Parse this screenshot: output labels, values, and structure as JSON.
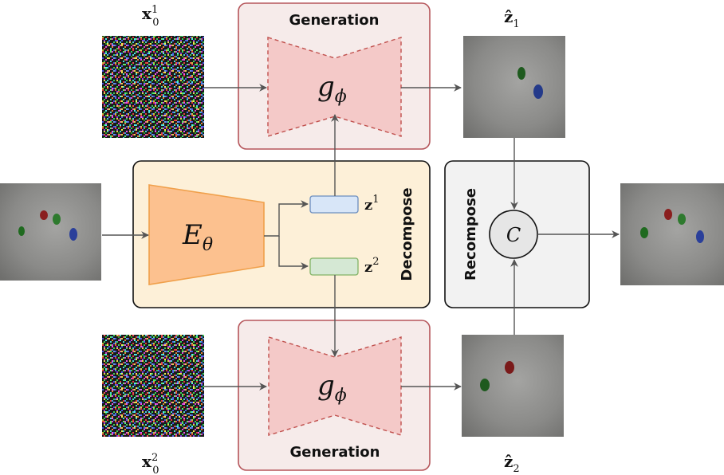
{
  "labels": {
    "x0_1": {
      "base": "x",
      "sup": "1",
      "sub": "0"
    },
    "x0_2": {
      "base": "x",
      "sup": "2",
      "sub": "0"
    },
    "zhat_1": {
      "base": "ẑ",
      "sub": "1"
    },
    "zhat_2": {
      "base": "ẑ",
      "sub": "2"
    },
    "z1": {
      "base": "z",
      "sup": "1"
    },
    "z2": {
      "base": "z",
      "sup": "2"
    },
    "generator_top": {
      "base": "g",
      "sub": "ϕ"
    },
    "generator_bottom": {
      "base": "g",
      "sub": "ϕ"
    },
    "encoder": {
      "base": "E",
      "sub": "θ"
    },
    "combine": "C"
  },
  "boxes": {
    "generation_top": "Generation",
    "generation_bottom": "Generation",
    "decompose": "Decompose",
    "recompose": "Recompose"
  },
  "colors": {
    "generation_fill": "#f6ebea",
    "generation_border": "#b5555a",
    "generator_fill": "#f4c9c8",
    "generator_dash": "#c0504d",
    "decompose_fill": "#fdf0d8",
    "encoder_fill": "#fcc18f",
    "encoder_border": "#f0a04b",
    "z1_fill": "#d8e6f8",
    "z1_border": "#6c8ebf",
    "z2_fill": "#d5e8d4",
    "z2_border": "#82b366",
    "recompose_fill": "#f2f2f2",
    "arrow": "#555555"
  }
}
